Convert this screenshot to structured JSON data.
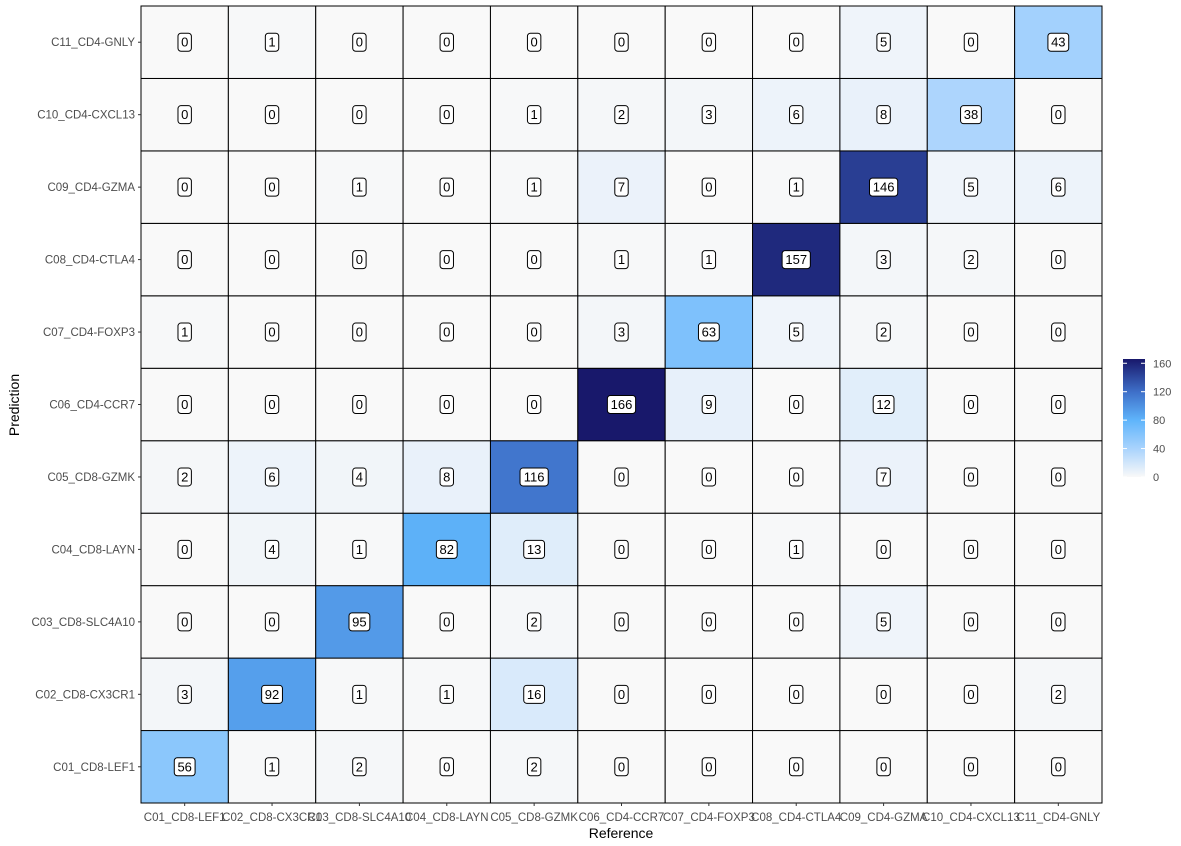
{
  "chart_data": {
    "type": "heatmap",
    "xlabel": "Reference",
    "ylabel": "Prediction",
    "x_categories": [
      "C01_CD8-LEF1",
      "C02_CD8-CX3CR1",
      "C03_CD8-SLC4A10",
      "C04_CD8-LAYN",
      "C05_CD8-GZMK",
      "C06_CD4-CCR7",
      "C07_CD4-FOXP3",
      "C08_CD4-CTLA4",
      "C09_CD4-GZMA",
      "C10_CD4-CXCL13",
      "C11_CD4-GNLY"
    ],
    "y_categories": [
      "C01_CD8-LEF1",
      "C02_CD8-CX3CR1",
      "C03_CD8-SLC4A10",
      "C04_CD8-LAYN",
      "C05_CD8-GZMK",
      "C06_CD4-CCR7",
      "C07_CD4-FOXP3",
      "C08_CD4-CTLA4",
      "C09_CD4-GZMA",
      "C10_CD4-CXCL13",
      "C11_CD4-GNLY"
    ],
    "values": [
      [
        56,
        1,
        2,
        0,
        2,
        0,
        0,
        0,
        0,
        0,
        0
      ],
      [
        3,
        92,
        1,
        1,
        16,
        0,
        0,
        0,
        0,
        0,
        2
      ],
      [
        0,
        0,
        95,
        0,
        2,
        0,
        0,
        0,
        5,
        0,
        0
      ],
      [
        0,
        4,
        1,
        82,
        13,
        0,
        0,
        1,
        0,
        0,
        0
      ],
      [
        2,
        6,
        4,
        8,
        116,
        0,
        0,
        0,
        7,
        0,
        0
      ],
      [
        0,
        0,
        0,
        0,
        0,
        166,
        9,
        0,
        12,
        0,
        0
      ],
      [
        1,
        0,
        0,
        0,
        0,
        3,
        63,
        5,
        2,
        0,
        0
      ],
      [
        0,
        0,
        0,
        0,
        0,
        1,
        1,
        157,
        3,
        2,
        0
      ],
      [
        0,
        0,
        1,
        0,
        1,
        7,
        0,
        1,
        146,
        5,
        6
      ],
      [
        0,
        0,
        0,
        0,
        1,
        2,
        3,
        6,
        8,
        38,
        0
      ],
      [
        0,
        1,
        0,
        0,
        0,
        0,
        0,
        0,
        5,
        0,
        43
      ]
    ],
    "color_scale": {
      "min": 0,
      "max": 166,
      "stops": [
        {
          "value": 0,
          "color": "#f9f9f9"
        },
        {
          "value": 40,
          "color": "#a9d3fd"
        },
        {
          "value": 80,
          "color": "#5fb4fb"
        },
        {
          "value": 120,
          "color": "#3e6fc8"
        },
        {
          "value": 166,
          "color": "#18186b"
        }
      ]
    },
    "legend": {
      "position": "right",
      "ticks": [
        0,
        40,
        80,
        120,
        160
      ]
    },
    "grid": false
  }
}
